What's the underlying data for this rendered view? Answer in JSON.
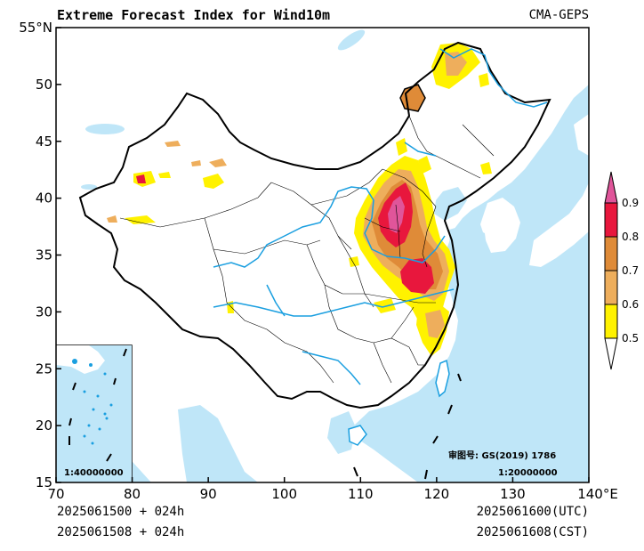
{
  "header": {
    "title": "Extreme Forecast Index for Wind10m",
    "model": "CMA-GEPS"
  },
  "axes": {
    "y_ticks": [
      "55°N",
      "50",
      "45",
      "40",
      "35",
      "30",
      "25",
      "20",
      "15"
    ],
    "x_ticks": [
      "70",
      "80",
      "90",
      "100",
      "110",
      "120",
      "130",
      "140°E"
    ],
    "x_range": [
      70,
      140
    ],
    "y_range": [
      15,
      55
    ]
  },
  "legend": {
    "levels": [
      "0.9",
      "0.8",
      "0.7",
      "0.6",
      "0.5"
    ],
    "colors": {
      "above_0.9": "#e0559a",
      "0.8_0.9": "#e8173d",
      "0.7_0.8": "#df8b38",
      "0.6_0.7": "#eeae5c",
      "0.5_0.6": "#fff200"
    }
  },
  "map": {
    "approval_label": "审图号: GS(2019) 1786",
    "main_scale": "1:20000000",
    "inset_scale": "1:40000000",
    "ocean_color": "#bfe6f8",
    "river_color": "#1a9fe0"
  },
  "footer": {
    "init_utc": "2025061500 + 024h",
    "init_cst": "2025061508 + 024h",
    "valid_utc": "2025061600(UTC)",
    "valid_cst": "2025061608(CST)"
  }
}
